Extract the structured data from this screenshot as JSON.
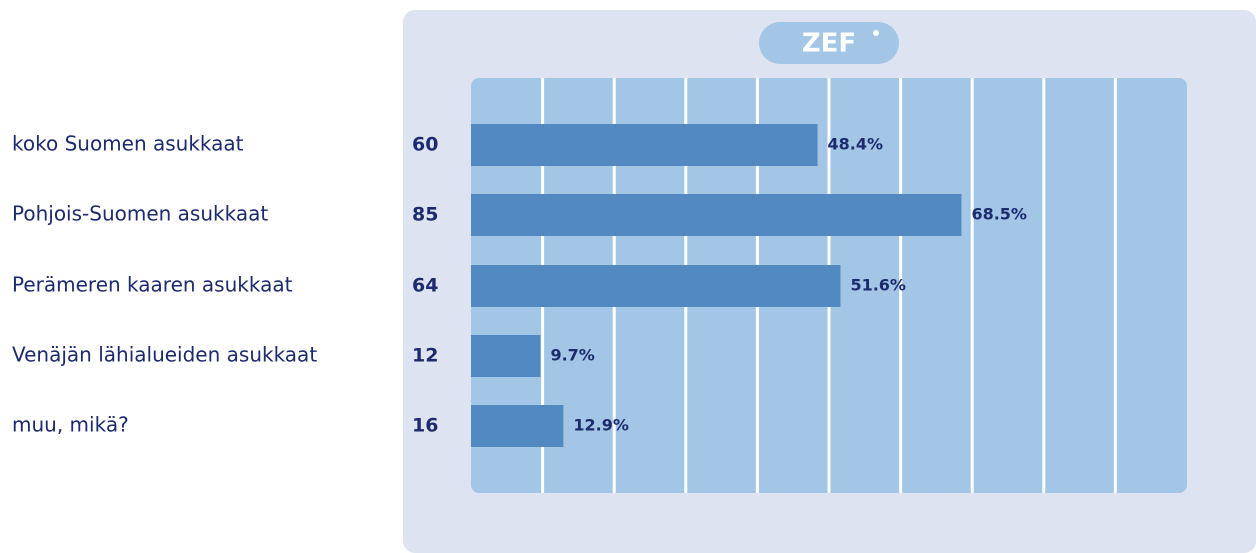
{
  "chart_data": {
    "type": "bar",
    "orientation": "horizontal",
    "logo": "ZEF",
    "categories": [
      "koko Suomen asukkaat",
      "Pohjois-Suomen asukkaat",
      "Perämeren kaaren asukkaat",
      "Venäjän lähialueiden asukkaat",
      "muu, mikä?"
    ],
    "counts": [
      60,
      85,
      64,
      12,
      16
    ],
    "values": [
      48.4,
      68.5,
      51.6,
      9.7,
      12.9
    ],
    "value_labels": [
      "48.4%",
      "68.5%",
      "51.6%",
      "9.7%",
      "12.9%"
    ],
    "color": "#5289c0",
    "xlim": [
      0,
      100
    ],
    "xticks": [
      0,
      10,
      20,
      30,
      40,
      50,
      60,
      70,
      80,
      90,
      100
    ],
    "grid": true
  }
}
